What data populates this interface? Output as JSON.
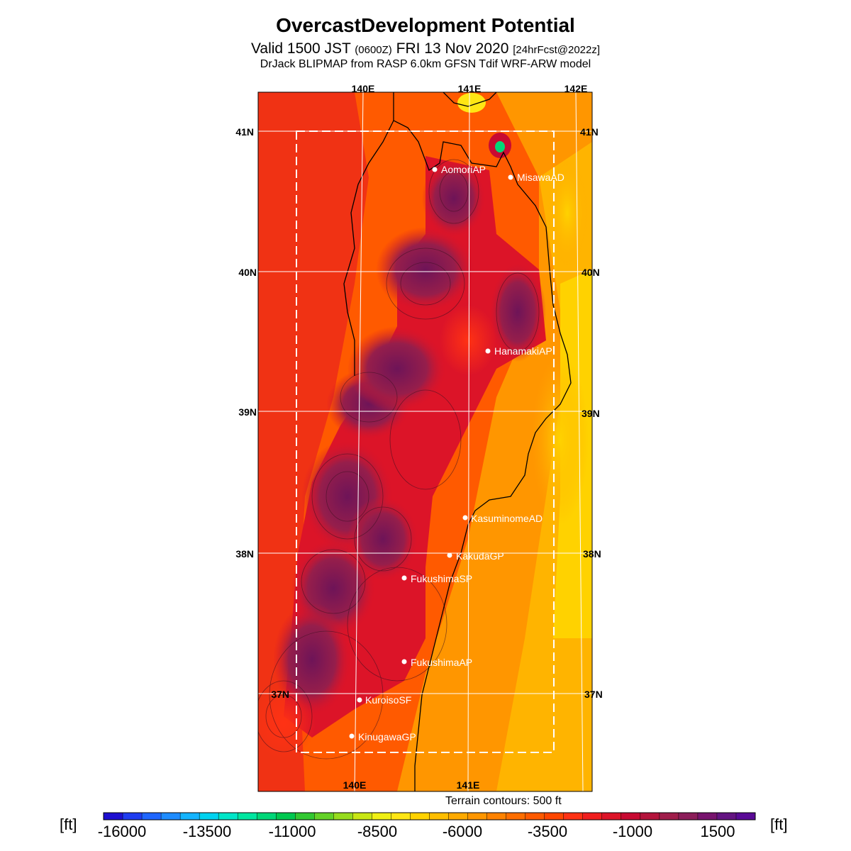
{
  "title": {
    "main": "OvercastDevelopment Potential",
    "valid_prefix": "Valid 1500 JST",
    "valid_utc": "(0600Z)",
    "valid_date": "FRI 13 Nov 2020",
    "forecast": "[24hrFcst@2022z]",
    "model": "DrJack BLIPMAP from RASP 6.0km GFSN Tdif WRF-ARW model"
  },
  "map": {
    "lon_labels_top": [
      "140E",
      "141E",
      "142E"
    ],
    "lon_labels_bottom": [
      "140E",
      "141E"
    ],
    "lat_labels_left": [
      "41N",
      "40N",
      "39N",
      "38N",
      "37N"
    ],
    "lat_labels_right": [
      "41N",
      "40N",
      "39N",
      "38N",
      "37N"
    ],
    "stations": [
      {
        "name": "AomoriAP"
      },
      {
        "name": "MisawaAD"
      },
      {
        "name": "HanamakiAP"
      },
      {
        "name": "KasuminomeAD"
      },
      {
        "name": "KakudaGP"
      },
      {
        "name": "FukushimaSP"
      },
      {
        "name": "FukushimaAP"
      },
      {
        "name": "KuroisoSF"
      },
      {
        "name": "KinugawaGP"
      }
    ],
    "terrain_note": "Terrain contours: 500 ft"
  },
  "colorbar": {
    "unit_left": "[ft]",
    "unit_right": "[ft]",
    "tick_labels": [
      "-16000",
      "-13500",
      "-11000",
      "-8500",
      "-6000",
      "-3500",
      "-1000",
      "1500"
    ],
    "colors": [
      "#1e0fd0",
      "#1f3cf0",
      "#1f66ff",
      "#1e8cff",
      "#14b4ff",
      "#00d2f0",
      "#00e6c8",
      "#00e6a0",
      "#00d778",
      "#00c850",
      "#32c832",
      "#64d228",
      "#96dc1e",
      "#c8e614",
      "#f0f014",
      "#ffe614",
      "#ffd200",
      "#ffbe00",
      "#ffaa00",
      "#ff9600",
      "#ff8200",
      "#ff6e00",
      "#ff5a00",
      "#ff4600",
      "#ff3214",
      "#f01e1e",
      "#dc1428",
      "#c80a32",
      "#b4143c",
      "#a01e4b",
      "#8c1e5a",
      "#78146e",
      "#641482",
      "#5a0a96"
    ]
  }
}
